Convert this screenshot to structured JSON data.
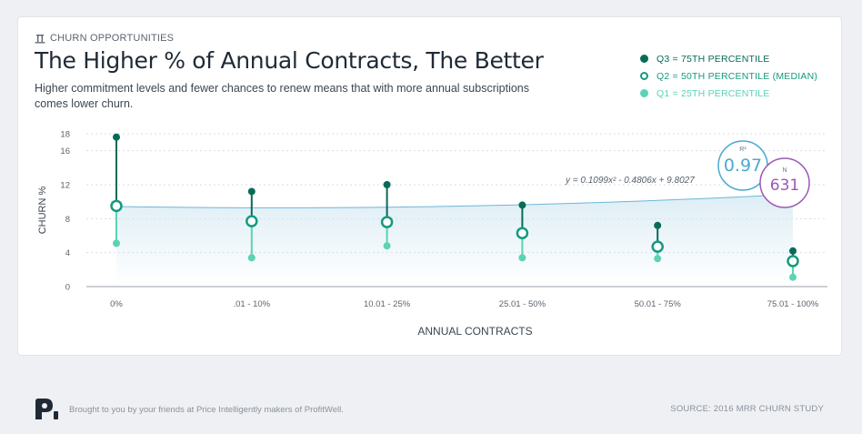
{
  "header": {
    "eyebrow": "CHURN OPPORTUNITIES",
    "title": "The Higher % of Annual Contracts, The Better",
    "subtitle": "Higher commitment levels and fewer chances to renew means that with more annual subscriptions comes lower churn."
  },
  "legend": {
    "q3": "Q3 = 75TH PERCENTILE",
    "q2": "Q2 = 50TH PERCENTILE (MEDIAN)",
    "q1": "Q1 = 25TH PERCENTILE"
  },
  "stats": {
    "equation": "y = 0.1099x² - 0.4806x + 9.8027",
    "r2_label": "R²",
    "r2_value": "0.97",
    "n_label": "N",
    "n_value": "631"
  },
  "colors": {
    "q3": "#086b58",
    "q2": "#159a80",
    "q1": "#5bd3b4",
    "trend": "#6fb6d6",
    "r2": "#4aa9cf",
    "n": "#9b59b6"
  },
  "chart_data": {
    "type": "scatter",
    "title": "The Higher % of Annual Contracts, The Better",
    "xlabel": "ANNUAL CONTRACTS",
    "ylabel": "CHURN %",
    "ylim": [
      0,
      18
    ],
    "yticks": [
      0,
      4,
      8,
      12,
      16,
      18
    ],
    "grid": true,
    "legend_position": "top-right",
    "categories": [
      "0%",
      ".01 - 10%",
      "10.01 - 25%",
      "25.01 - 50%",
      "50.01 - 75%",
      "75.01 - 100%"
    ],
    "series": [
      {
        "name": "Q3 = 75TH PERCENTILE",
        "values": [
          17.6,
          11.2,
          12.0,
          9.6,
          7.2,
          4.2
        ]
      },
      {
        "name": "Q2 = 50TH PERCENTILE (MEDIAN)",
        "values": [
          9.5,
          7.7,
          7.6,
          6.3,
          4.7,
          3.0
        ]
      },
      {
        "name": "Q1 = 25TH PERCENTILE",
        "values": [
          5.1,
          3.4,
          4.8,
          3.4,
          3.3,
          1.1
        ]
      }
    ],
    "trendline": {
      "type": "polynomial",
      "equation": "y = 0.1099x² - 0.4806x + 9.8027",
      "coefficients": [
        0.1099,
        -0.4806,
        9.8027
      ]
    }
  },
  "footer": {
    "credit": "Brought to you by your friends at Price Intelligently makers of ProfitWell.",
    "source": "SOURCE: 2016 MRR CHURN STUDY"
  }
}
